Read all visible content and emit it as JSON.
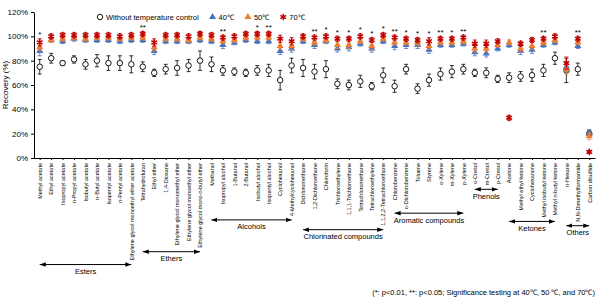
{
  "chart_data": {
    "type": "scatter",
    "ylabel": "Recovery (%)",
    "ylim": [
      0,
      120
    ],
    "yticks": [
      {
        "value": 0,
        "label": "0%"
      },
      {
        "value": 20,
        "label": "20%"
      },
      {
        "value": 40,
        "label": "40%"
      },
      {
        "value": 60,
        "label": "60%"
      },
      {
        "value": 80,
        "label": "80%"
      },
      {
        "value": 100,
        "label": "100%"
      },
      {
        "value": 120,
        "label": "120%"
      }
    ],
    "grid": false,
    "legend": "top",
    "categories": [
      "Methyl acetate",
      "Ethyl acetate",
      "Isopropyl acetate",
      "n-Propyl acetate",
      "Isobutyl acetate",
      "n-Butyl acetate",
      "Isopentyl acetate",
      "n-Pentyl acetate",
      "Ethylene glycol monoethyl ether acetate",
      "Tetrahydrofuran",
      "Ethyl ether",
      "1,4-Dioxane",
      "Ethylene glycol monomethyl ether",
      "Ethylene glycol monoethyl ether",
      "Ethylene glycol mono-n-butyl ether",
      "Methanol",
      "Isopropyl alcohol",
      "1-Butanol",
      "2-Butanol",
      "Isobutyl alcohol",
      "Isopentyl alcohol",
      "Cyclohexanol",
      "4-Methylcyclohexanol",
      "Dichloromethane",
      "1,2-Dichloroethane",
      "Chloroform",
      "Trichloroethylene",
      "1,1,1-Trichloroethane",
      "Tetrachloromethane",
      "Tetrachloroethylene",
      "1,1,2,2-Tetrachloroethane",
      "Chlorobenzene",
      "o-Dichlorobenzene",
      "Toluene",
      "Styrene",
      "o-Xylene",
      "m-Xylene",
      "p-Xylene",
      "o-Cresol",
      "m-Cresol",
      "p-Cresol",
      "Acetone",
      "Methyl ethyl ketone",
      "Cyclohexanone",
      "Methyl isobutyl ketone",
      "Methyl n-butyl ketone",
      "n-Hexane",
      "N,N-Dimethylformamide",
      "Carbon disulfide"
    ],
    "series": [
      {
        "name": "Without temperature control",
        "color": "#000000",
        "marker": "open-circle",
        "values": [
          75,
          82,
          78,
          81,
          77,
          80,
          78,
          78,
          77,
          75,
          70,
          73,
          74,
          76,
          80,
          77,
          72,
          71,
          70,
          72,
          72,
          64,
          76,
          74,
          71,
          73,
          61,
          60,
          63,
          59,
          68,
          59,
          73,
          57,
          64,
          69,
          71,
          73,
          70,
          70,
          65,
          66,
          67,
          68,
          72,
          82,
          72,
          73,
          20
        ],
        "errors": [
          6,
          4,
          2,
          3,
          4,
          5,
          6,
          6,
          7,
          4,
          3,
          4,
          6,
          5,
          8,
          6,
          4,
          3,
          3,
          4,
          5,
          8,
          6,
          7,
          6,
          7,
          4,
          4,
          5,
          3,
          6,
          5,
          4,
          4,
          5,
          5,
          5,
          4,
          3,
          4,
          3,
          4,
          4,
          5,
          5,
          5,
          10,
          5,
          3
        ]
      },
      {
        "name": "40℃",
        "color": "#4472c4",
        "marker": "triangle",
        "values": [
          88,
          97,
          96,
          98,
          97,
          97,
          97,
          96,
          97,
          97,
          88,
          96,
          96,
          96,
          97,
          96,
          93,
          95,
          97,
          96,
          96,
          88,
          90,
          96,
          93,
          96,
          90,
          91,
          94,
          90,
          96,
          92,
          93,
          93,
          89,
          93,
          93,
          94,
          87,
          86,
          90,
          93,
          88,
          89,
          93,
          95,
          75,
          92,
          20
        ],
        "errors": [
          4,
          2,
          2,
          2,
          2,
          2,
          2,
          2,
          2,
          2,
          3,
          2,
          2,
          2,
          2,
          2,
          3,
          2,
          2,
          2,
          2,
          3,
          3,
          2,
          3,
          2,
          3,
          3,
          2,
          3,
          2,
          3,
          3,
          3,
          3,
          2,
          2,
          2,
          3,
          3,
          2,
          2,
          3,
          3,
          2,
          2,
          4,
          2,
          3
        ]
      },
      {
        "name": "50℃",
        "color": "#ed7d31",
        "marker": "triangle",
        "values": [
          91,
          97,
          98,
          99,
          98,
          99,
          99,
          98,
          99,
          99,
          91,
          98,
          98,
          97,
          99,
          98,
          96,
          97,
          99,
          99,
          99,
          92,
          92,
          98,
          95,
          97,
          93,
          93,
          96,
          92,
          98,
          95,
          95,
          95,
          92,
          95,
          95,
          96,
          90,
          90,
          93,
          95,
          90,
          92,
          95,
          97,
          73,
          95,
          18
        ],
        "errors": [
          3,
          2,
          2,
          2,
          2,
          2,
          2,
          2,
          2,
          2,
          3,
          2,
          2,
          2,
          2,
          2,
          2,
          2,
          2,
          2,
          2,
          3,
          3,
          2,
          2,
          2,
          3,
          3,
          2,
          3,
          2,
          2,
          2,
          3,
          3,
          2,
          2,
          2,
          3,
          3,
          2,
          2,
          3,
          3,
          2,
          2,
          4,
          2,
          3
        ]
      },
      {
        "name": "70℃",
        "color": "#c00000",
        "marker": "asterisk",
        "values": [
          95,
          100,
          101,
          101,
          101,
          101,
          101,
          100,
          101,
          102,
          95,
          101,
          101,
          100,
          102,
          101,
          99,
          100,
          102,
          102,
          102,
          98,
          96,
          100,
          99,
          100,
          98,
          98,
          100,
          97,
          101,
          99,
          98,
          97,
          96,
          98,
          98,
          99,
          94,
          94,
          96,
          33,
          94,
          97,
          98,
          100,
          78,
          98,
          5
        ],
        "errors": [
          3,
          2,
          2,
          2,
          2,
          2,
          2,
          2,
          2,
          2,
          3,
          2,
          2,
          2,
          2,
          2,
          2,
          2,
          2,
          2,
          2,
          3,
          3,
          2,
          2,
          2,
          2,
          2,
          2,
          2,
          2,
          2,
          2,
          2,
          3,
          2,
          2,
          2,
          3,
          3,
          2,
          2,
          2,
          2,
          2,
          2,
          5,
          2,
          1
        ]
      }
    ],
    "significance": [
      "*",
      null,
      null,
      null,
      null,
      null,
      null,
      null,
      null,
      "**",
      null,
      null,
      null,
      null,
      null,
      null,
      "**",
      null,
      null,
      "*",
      "**",
      null,
      null,
      null,
      "**",
      "*",
      "*",
      "*",
      "*",
      "*",
      "*",
      "**",
      "*",
      "*",
      "*",
      "**",
      "*",
      "**",
      null,
      null,
      null,
      null,
      null,
      null,
      "**",
      null,
      null,
      "**",
      null
    ],
    "groups": [
      {
        "label": "Esters",
        "first": "Methyl acetate",
        "last": "Ethylene glycol monoethyl ether acetate"
      },
      {
        "label": "Ethers",
        "first": "Tetrahydrofuran",
        "last": "Ethylene glycol mono-n-butyl ether"
      },
      {
        "label": "Alcohols",
        "first": "Methanol",
        "last": "4-Methylcyclohexanol"
      },
      {
        "label": "Chlorinated compounds",
        "first": "Dichloromethane",
        "last": "1,1,2,2-Tetrachloroethane"
      },
      {
        "label": "Aromatic compounds",
        "first": "Chlorobenzene",
        "last": "p-Xylene"
      },
      {
        "label": "Phenols",
        "first": "o-Cresol",
        "last": "p-Cresol"
      },
      {
        "label": "Ketones",
        "first": "Acetone",
        "last": "Methyl n-butyl ketone"
      },
      {
        "label": "Others",
        "first": "n-Hexane",
        "last": "Carbon disulfide"
      }
    ],
    "note": "(*: p<0.01, **: p<0.05; Significance testing at 40℃, 50 ℃, and 70℃)"
  }
}
